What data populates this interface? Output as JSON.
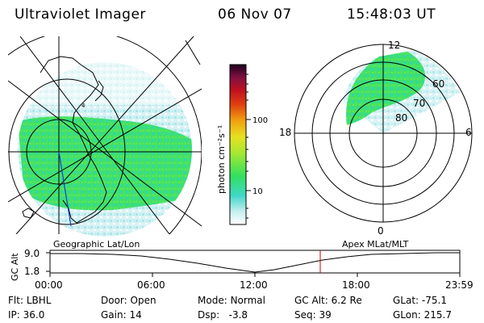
{
  "header": {
    "instrument": "Ultraviolet Imager",
    "date": "06 Nov 07",
    "time": "15:48:03 UT"
  },
  "left_map": {
    "caption": "Geographic Lat/Lon",
    "orbit_mark": "4"
  },
  "colorbar": {
    "unit_label": "photon cm⁻²s⁻¹",
    "ticks": [
      "100",
      "10"
    ],
    "scale": "log",
    "colors": [
      "#ffffff",
      "#c8eef0",
      "#40d8c8",
      "#30e060",
      "#a8e830",
      "#e8e020",
      "#f0a010",
      "#e04010",
      "#c01020",
      "#801040",
      "#200020"
    ]
  },
  "polar_plot": {
    "caption": "Apex MLat/MLT",
    "mlt_labels": {
      "top": "12",
      "left": "18",
      "right": "6",
      "bottom": "0"
    },
    "lat_labels": [
      "60",
      "70",
      "80"
    ]
  },
  "altitude_panel": {
    "ylabel": "GC Alt",
    "yticks": [
      "9.0",
      "1.8"
    ],
    "xticks": [
      "00:00",
      "06:00",
      "12:00",
      "18:00",
      "23:59"
    ],
    "current_time_marker": "15:48"
  },
  "status": {
    "filter_label": "Flt:",
    "filter_value": "LBHL",
    "ip_label": "IP:",
    "ip_value": "36.0",
    "door_label": "Door:",
    "door_value": "Open",
    "gain_label": "Gain:",
    "gain_value": "14",
    "mode_label": "Mode:",
    "mode_value": "Normal",
    "dsp_label": "Dsp:",
    "dsp_value": "-3.8",
    "gcalt_label": "GC Alt:",
    "gcalt_value": "6.2 Re",
    "seq_label": "Seq:",
    "seq_value": "39",
    "glat_label": "GLat:",
    "glat_value": "-75.1",
    "glon_label": "GLon:",
    "glon_value": "215.7"
  }
}
